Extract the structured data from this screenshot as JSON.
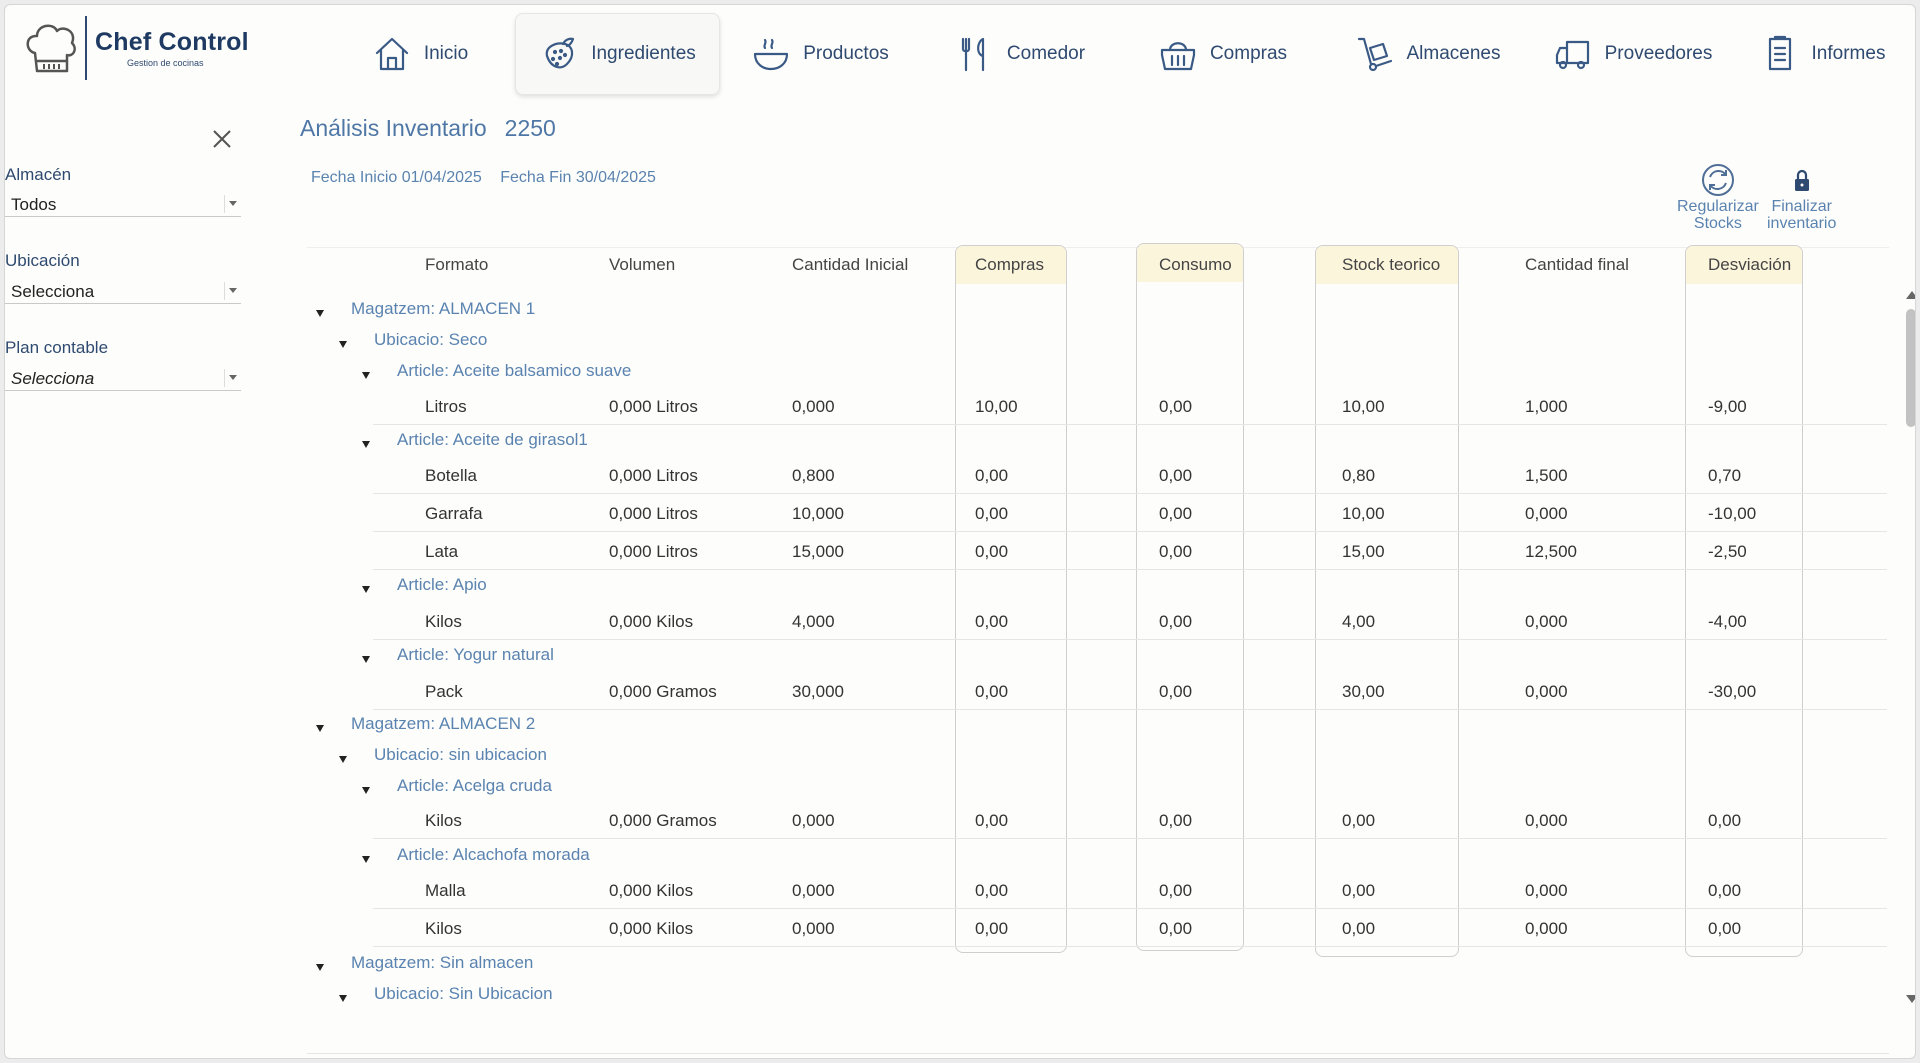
{
  "brand": {
    "name": "Chef Control",
    "subtitle": "Gestion de cocinas"
  },
  "nav": [
    {
      "label": "Inicio",
      "icon": "home-icon"
    },
    {
      "label": "Ingredientes",
      "icon": "strawberry-icon",
      "active": true
    },
    {
      "label": "Productos",
      "icon": "bowl-icon"
    },
    {
      "label": "Comedor",
      "icon": "fork-knife-icon"
    },
    {
      "label": "Compras",
      "icon": "basket-icon"
    },
    {
      "label": "Almacenes",
      "icon": "hand-truck-icon"
    },
    {
      "label": "Proveedores",
      "icon": "truck-icon"
    },
    {
      "label": "Informes",
      "icon": "document-icon"
    }
  ],
  "sidebar": {
    "almacen": {
      "label": "Almacén",
      "value": "Todos"
    },
    "ubicacion": {
      "label": "Ubicación",
      "value": "Selecciona"
    },
    "plan": {
      "label": "Plan contable",
      "value": "Selecciona"
    }
  },
  "main": {
    "title": "Análisis Inventario",
    "number": "2250",
    "fecha_inicio": "Fecha Inicio 01/04/2025",
    "fecha_fin": "Fecha Fin 30/04/2025",
    "regularizar": [
      "Regularizar",
      "Stocks"
    ],
    "finalizar": [
      "Finalizar",
      "inventario"
    ]
  },
  "columns": {
    "formato": "Formato",
    "volumen": "Volumen",
    "cantidad_inicial": "Cantidad Inicial",
    "compras": "Compras",
    "consumo": "Consumo",
    "stock_teorico": "Stock teorico",
    "cantidad_final": "Cantidad final",
    "desviacion": "Desviación"
  },
  "rows": [
    {
      "type": "almacen",
      "text": "Magatzem: ALMACEN 1"
    },
    {
      "type": "ubicacion",
      "text": "Ubicacio: Seco"
    },
    {
      "type": "article",
      "text": "Article: Aceite balsamico suave"
    },
    {
      "type": "item",
      "cells": [
        "Litros",
        "0,000 Litros",
        "0,000",
        "10,00",
        "0,00",
        "10,00",
        "1,000",
        "-9,00"
      ]
    },
    {
      "type": "article",
      "text": "Article: Aceite de girasol1"
    },
    {
      "type": "item",
      "cells": [
        "Botella",
        "0,000 Litros",
        "0,800",
        "0,00",
        "0,00",
        "0,80",
        "1,500",
        "0,70"
      ]
    },
    {
      "type": "item",
      "cells": [
        "Garrafa",
        "0,000 Litros",
        "10,000",
        "0,00",
        "0,00",
        "10,00",
        "0,000",
        "-10,00"
      ]
    },
    {
      "type": "item",
      "cells": [
        "Lata",
        "0,000 Litros",
        "15,000",
        "0,00",
        "0,00",
        "15,00",
        "12,500",
        "-2,50"
      ]
    },
    {
      "type": "article",
      "text": "Article: Apio"
    },
    {
      "type": "item",
      "cells": [
        "Kilos",
        "0,000 Kilos",
        "4,000",
        "0,00",
        "0,00",
        "4,00",
        "0,000",
        "-4,00"
      ]
    },
    {
      "type": "article",
      "text": "Article: Yogur natural"
    },
    {
      "type": "item",
      "cells": [
        "Pack",
        "0,000 Gramos",
        "30,000",
        "0,00",
        "0,00",
        "30,00",
        "0,000",
        "-30,00"
      ]
    },
    {
      "type": "almacen",
      "text": "Magatzem: ALMACEN 2"
    },
    {
      "type": "ubicacion",
      "text": "Ubicacio: sin ubicacion"
    },
    {
      "type": "article",
      "text": "Article: Acelga cruda"
    },
    {
      "type": "item",
      "cells": [
        "Kilos",
        "0,000 Gramos",
        "0,000",
        "0,00",
        "0,00",
        "0,00",
        "0,000",
        "0,00"
      ]
    },
    {
      "type": "article",
      "text": "Article: Alcachofa morada"
    },
    {
      "type": "item",
      "cells": [
        "Malla",
        "0,000 Kilos",
        "0,000",
        "0,00",
        "0,00",
        "0,00",
        "0,000",
        "0,00"
      ]
    },
    {
      "type": "item",
      "cells": [
        "Kilos",
        "0,000 Kilos",
        "0,000",
        "0,00",
        "0,00",
        "0,00",
        "0,000",
        "0,00"
      ]
    },
    {
      "type": "almacen",
      "text": "Magatzem: Sin almacen"
    },
    {
      "type": "ubicacion",
      "text": "Ubicacio: Sin Ubicacion"
    }
  ]
}
